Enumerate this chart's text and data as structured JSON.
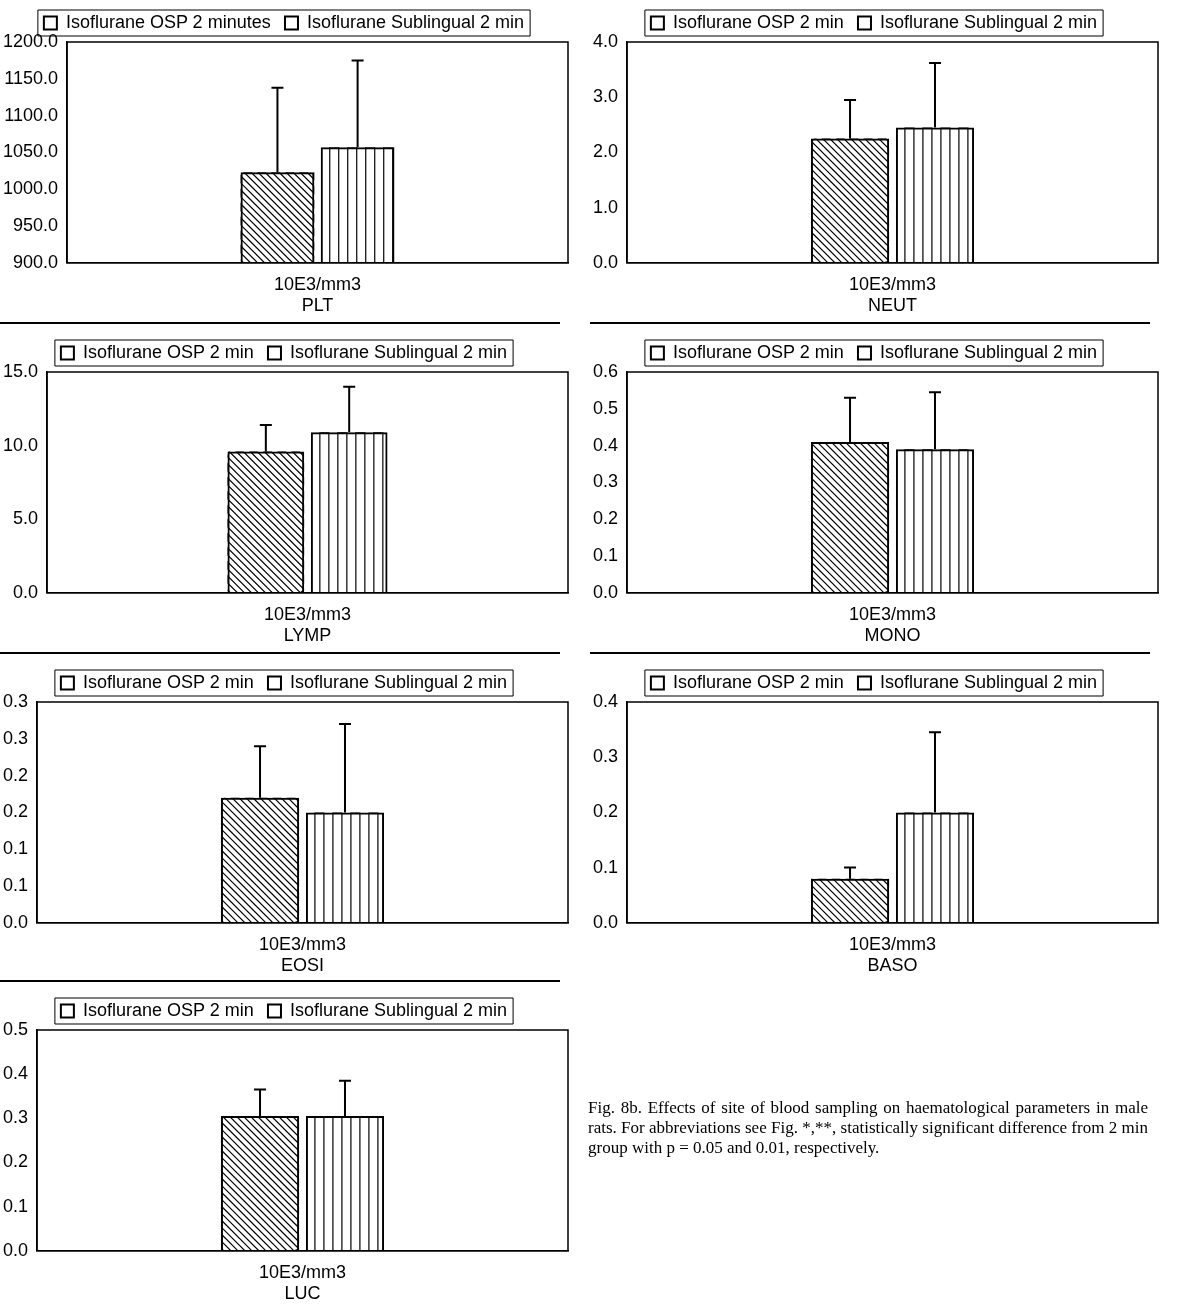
{
  "chart_data": [
    {
      "type": "bar",
      "categories": [
        "PLT"
      ],
      "xlabel": "10E3/mm3",
      "legend": "top",
      "ylim": [
        900,
        1200
      ],
      "yticks": [
        {
          "value": 900,
          "label": "900.0"
        },
        {
          "value": 950,
          "label": "950.0"
        },
        {
          "value": 1000,
          "label": "1000.0"
        },
        {
          "value": 1050,
          "label": "1050.0"
        },
        {
          "value": 1100,
          "label": "1100.0"
        },
        {
          "value": 1150,
          "label": "1150.0"
        },
        {
          "value": 1200,
          "label": "1200.0"
        }
      ],
      "series": [
        {
          "name": "Isoflurane OSP 2 minutes",
          "color": "#000000",
          "values": [
            1023
          ],
          "errors": [
            [
              1023,
              1138
            ]
          ]
        },
        {
          "name": "Isoflurane Sublingual 2 min",
          "color": "#000000",
          "values": [
            1057
          ],
          "errors": [
            [
              1057,
              1175
            ]
          ]
        }
      ]
    },
    {
      "type": "bar",
      "categories": [
        "NEUT"
      ],
      "xlabel": "10E3/mm3",
      "legend": "top",
      "ylim": [
        0,
        4
      ],
      "yticks": [
        {
          "value": 0,
          "label": "0.0"
        },
        {
          "value": 1,
          "label": "1.0"
        },
        {
          "value": 2,
          "label": "2.0"
        },
        {
          "value": 3,
          "label": "3.0"
        },
        {
          "value": 4,
          "label": "4.0"
        }
      ],
      "series": [
        {
          "name": "Isoflurane OSP 2 min",
          "color": "#000000",
          "values": [
            2.25
          ],
          "errors": [
            [
              2.25,
              2.95
            ]
          ]
        },
        {
          "name": "Isoflurane Sublingual 2 min",
          "color": "#000000",
          "values": [
            2.45
          ],
          "errors": [
            [
              2.45,
              3.62
            ]
          ]
        }
      ]
    },
    {
      "type": "bar",
      "categories": [
        "LYMP"
      ],
      "xlabel": "10E3/mm3",
      "legend": "top",
      "ylim": [
        0,
        15
      ],
      "yticks": [
        {
          "value": 0,
          "label": "0.0"
        },
        {
          "value": 5,
          "label": "5.0"
        },
        {
          "value": 10,
          "label": "10.0"
        },
        {
          "value": 15,
          "label": "15.0"
        }
      ],
      "series": [
        {
          "name": "Isoflurane OSP 2 min",
          "color": "#000000",
          "values": [
            9.6
          ],
          "errors": [
            [
              9.6,
              11.4
            ]
          ]
        },
        {
          "name": "Isoflurane Sublingual 2 min",
          "color": "#000000",
          "values": [
            10.9
          ],
          "errors": [
            [
              10.9,
              14.0
            ]
          ]
        }
      ]
    },
    {
      "type": "bar",
      "categories": [
        "MONO"
      ],
      "xlabel": "10E3/mm3",
      "legend": "top",
      "ylim": [
        0,
        0.6
      ],
      "yticks": [
        {
          "value": 0,
          "label": "0.0"
        },
        0.1,
        0.2,
        0.3,
        0.4,
        0.5,
        0.6
      ],
      "series": [
        {
          "name": "Isoflurane OSP 2 min",
          "color": "#000000",
          "values": [
            0.41
          ],
          "errors": [
            [
              0.41,
              0.53
            ]
          ]
        },
        {
          "name": "Isoflurane Sublingual 2 min",
          "color": "#000000",
          "values": [
            0.39
          ],
          "errors": [
            [
              0.39,
              0.545
            ]
          ]
        }
      ]
    },
    {
      "type": "bar",
      "categories": [
        "EOSI"
      ],
      "xlabel": "10E3/mm3",
      "legend": "top",
      "ylim": [
        0,
        0.3
      ],
      "yticks": [
        {
          "value": 0,
          "label": "0.0"
        },
        {
          "value": 0.05,
          "label": "0.1"
        },
        {
          "value": 0.1,
          "label": "0.1"
        },
        {
          "value": 0.15,
          "label": "0.2"
        },
        {
          "value": 0.2,
          "label": "0.2"
        },
        {
          "value": 0.25,
          "label": "0.3"
        },
        {
          "value": 0.3,
          "label": "0.3"
        }
      ],
      "series": [
        {
          "name": "Isoflurane OSP 2 min",
          "color": "#000000",
          "values": [
            0.17
          ],
          "errors": [
            [
              0.17,
              0.24
            ]
          ]
        },
        {
          "name": "Isoflurane Sublingual 2 min",
          "color": "#000000",
          "values": [
            0.15
          ],
          "errors": [
            [
              0.15,
              0.27
            ]
          ]
        }
      ]
    },
    {
      "type": "bar",
      "categories": [
        "BASO"
      ],
      "xlabel": "10E3/mm3",
      "legend": "top",
      "ylim": [
        0,
        0.4
      ],
      "yticks": [
        {
          "value": 0,
          "label": "0.0"
        },
        0.1,
        0.2,
        0.3,
        0.4
      ],
      "series": [
        {
          "name": "Isoflurane OSP 2 min",
          "color": "#000000",
          "values": [
            0.08
          ],
          "errors": [
            [
              0.08,
              0.1
            ]
          ]
        },
        {
          "name": "Isoflurane Sublingual 2 min",
          "color": "#000000",
          "values": [
            0.2
          ],
          "errors": [
            [
              0.2,
              0.345
            ]
          ]
        }
      ]
    },
    {
      "type": "bar",
      "categories": [
        "LUC"
      ],
      "xlabel": "10E3/mm3",
      "legend": "top",
      "ylim": [
        0,
        0.5
      ],
      "yticks": [
        {
          "value": 0,
          "label": "0.0"
        },
        0.1,
        0.2,
        0.3,
        0.4,
        0.5
      ],
      "annotations": [
        "Fig. 8b. Effects of site of blood sampling on haematological parameters in male rats. For abbreviations see Fig. *,**, statistically significant difference from 2 min group with p = 0.05 and 0.01, respectively."
      ],
      "series": [
        {
          "name": "Isoflurane OSP 2 min",
          "color": "#000000",
          "values": [
            0.305
          ],
          "errors": [
            [
              0.305,
              0.365
            ]
          ]
        },
        {
          "name": "Isoflurane Sublingual 2 min",
          "color": "#000000",
          "values": [
            0.305
          ],
          "errors": [
            [
              0.305,
              0.385
            ]
          ]
        }
      ]
    }
  ]
}
